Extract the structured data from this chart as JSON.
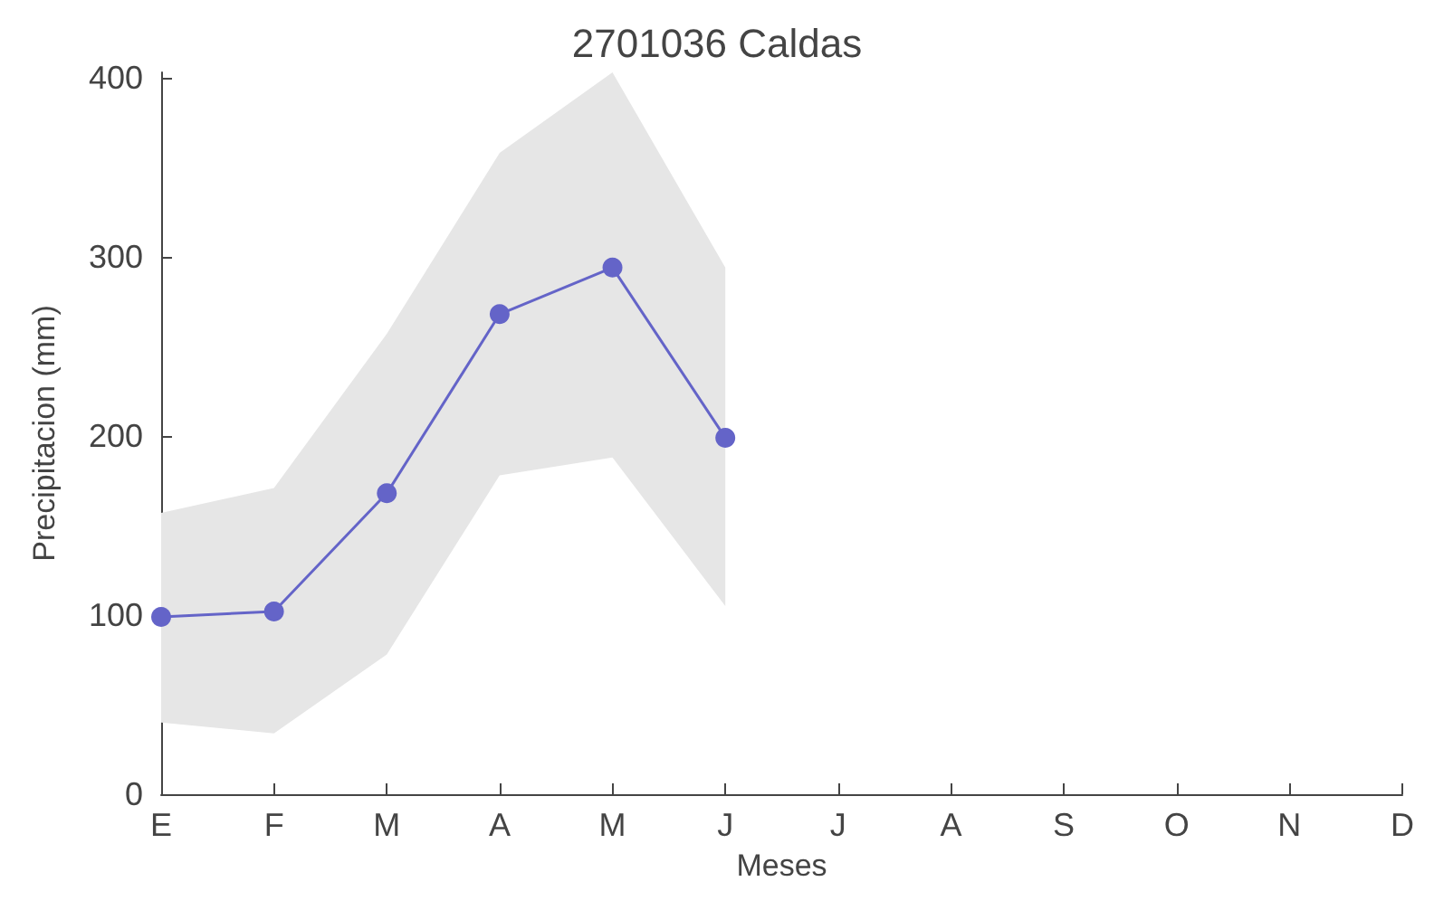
{
  "chart_data": {
    "type": "line",
    "title": "2701036 Caldas",
    "xlabel": "Meses",
    "ylabel": "Precipitacion (mm)",
    "categories": [
      "E",
      "F",
      "M",
      "A",
      "M",
      "J",
      "J",
      "A",
      "S",
      "O",
      "N",
      "D"
    ],
    "series": [
      {
        "color": "#6464c8",
        "values": [
          99,
          102,
          168,
          268,
          294,
          199,
          null,
          null,
          null,
          null,
          null,
          null
        ],
        "lower": [
          40,
          34,
          78,
          178,
          188,
          105,
          null,
          null,
          null,
          null,
          null,
          null
        ],
        "upper": [
          157,
          171,
          257,
          358,
          403,
          294,
          null,
          null,
          null,
          null,
          null,
          null
        ]
      }
    ],
    "ylim": [
      0,
      403
    ],
    "yticks": [
      0,
      100,
      200,
      300,
      400
    ],
    "grid": false,
    "marker": "circle",
    "line_style": "solid"
  }
}
